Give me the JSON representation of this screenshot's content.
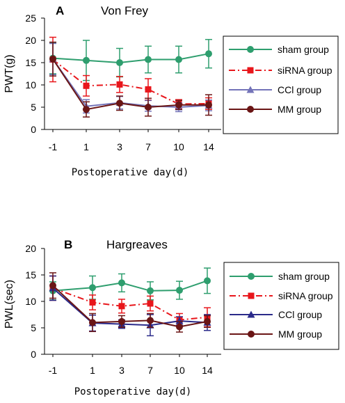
{
  "chart_data": [
    {
      "type": "line",
      "panel": "A",
      "title": "Von Frey",
      "ylabel": "PWT(g)",
      "xlabel": "Postoperative day(d)",
      "categories": [
        "-1",
        "1",
        "3",
        "7",
        "10",
        "14"
      ],
      "ylim": [
        0,
        25
      ],
      "yticks": [
        0,
        5,
        10,
        15,
        20,
        25
      ],
      "legend_position": "right",
      "series": [
        {
          "name": "sham group",
          "color": "#2e9e6e",
          "marker": "circle",
          "dash": "solid",
          "values": [
            16.0,
            15.5,
            15.0,
            15.7,
            15.7,
            17.0
          ],
          "errors": [
            3.5,
            4.5,
            3.2,
            3.0,
            3.0,
            3.2
          ]
        },
        {
          "name": "siRNA group",
          "color": "#e8161b",
          "marker": "square",
          "dash": "dashdot",
          "values": [
            15.7,
            9.8,
            10.1,
            9.0,
            5.7,
            5.8
          ],
          "errors": [
            5.0,
            2.3,
            1.8,
            2.4,
            1.0,
            1.3
          ]
        },
        {
          "name": "CCl group",
          "color": "#7373b8",
          "marker": "triangle",
          "dash": "solid",
          "values": [
            15.8,
            5.2,
            6.0,
            5.3,
            5.0,
            5.4
          ],
          "errors": [
            3.5,
            1.5,
            1.4,
            1.2,
            1.0,
            1.2
          ]
        },
        {
          "name": "MM group",
          "color": "#6a1515",
          "marker": "circle",
          "dash": "solid",
          "values": [
            15.8,
            4.5,
            5.9,
            5.0,
            5.5,
            5.5
          ],
          "errors": [
            3.8,
            1.7,
            1.6,
            2.0,
            1.0,
            2.3
          ]
        }
      ]
    },
    {
      "type": "line",
      "panel": "B",
      "title": "Hargreaves",
      "ylabel": "PWL(sec)",
      "xlabel": "Postoperative day(d)",
      "categories": [
        "-1",
        "1",
        "3",
        "7",
        "10",
        "14"
      ],
      "ylim": [
        0,
        20
      ],
      "yticks": [
        0,
        5,
        10,
        15,
        20
      ],
      "legend_position": "right",
      "series": [
        {
          "name": "sham group",
          "color": "#2e9e6e",
          "marker": "circle",
          "dash": "solid",
          "values": [
            12.0,
            12.6,
            13.5,
            12.0,
            12.1,
            13.9
          ],
          "errors": [
            1.7,
            2.2,
            1.7,
            1.7,
            1.7,
            2.4
          ]
        },
        {
          "name": "siRNA group",
          "color": "#e8161b",
          "marker": "square",
          "dash": "dashdot",
          "values": [
            12.5,
            9.8,
            9.1,
            9.6,
            6.5,
            7.0
          ],
          "errors": [
            2.3,
            1.4,
            1.3,
            1.4,
            1.2,
            1.8
          ]
        },
        {
          "name": "CCl group",
          "color": "#2a2a8a",
          "marker": "triangle",
          "dash": "solid",
          "values": [
            12.5,
            5.9,
            5.7,
            5.5,
            6.3,
            6.0
          ],
          "errors": [
            2.3,
            1.5,
            0.8,
            2.0,
            0.8,
            1.5
          ]
        },
        {
          "name": "MM group",
          "color": "#6a1515",
          "marker": "circle",
          "dash": "solid",
          "values": [
            13.0,
            6.0,
            6.2,
            6.4,
            5.2,
            6.2
          ],
          "errors": [
            2.4,
            1.7,
            1.1,
            1.3,
            1.0,
            1.1
          ]
        }
      ]
    }
  ]
}
